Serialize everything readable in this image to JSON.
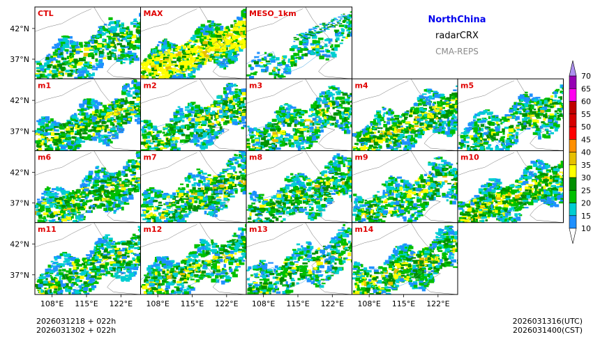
{
  "header": {
    "region": "NorthChina",
    "variable": "radarCRX",
    "model": "CMA-REPS"
  },
  "footer": {
    "init_utc": "2026031218  +  022h",
    "init_cst": "2026031302  +  022h",
    "valid_utc": "2026031316(UTC)",
    "valid_cst": "2026031400(CST)"
  },
  "chart_data": {
    "type": "heatmap",
    "title": "radarCRX",
    "subtitle": "NorthChina CMA-REPS",
    "panels": [
      {
        "label": "CTL",
        "row": 0,
        "col": 0,
        "intensity": 0.55
      },
      {
        "label": "MAX",
        "row": 0,
        "col": 1,
        "intensity": 1.0
      },
      {
        "label": "MESO_1km",
        "row": 0,
        "col": 2,
        "intensity": 0.18
      },
      {
        "label": "m1",
        "row": 1,
        "col": 0,
        "intensity": 0.75
      },
      {
        "label": "m2",
        "row": 1,
        "col": 1,
        "intensity": 0.65
      },
      {
        "label": "m3",
        "row": 1,
        "col": 2,
        "intensity": 0.6
      },
      {
        "label": "m4",
        "row": 1,
        "col": 3,
        "intensity": 0.7
      },
      {
        "label": "m5",
        "row": 1,
        "col": 4,
        "intensity": 0.55
      },
      {
        "label": "m6",
        "row": 2,
        "col": 0,
        "intensity": 0.65
      },
      {
        "label": "m7",
        "row": 2,
        "col": 1,
        "intensity": 0.65
      },
      {
        "label": "m8",
        "row": 2,
        "col": 2,
        "intensity": 0.6
      },
      {
        "label": "m9",
        "row": 2,
        "col": 3,
        "intensity": 0.6
      },
      {
        "label": "m10",
        "row": 2,
        "col": 4,
        "intensity": 0.8
      },
      {
        "label": "m11",
        "row": 3,
        "col": 0,
        "intensity": 0.6
      },
      {
        "label": "m12",
        "row": 3,
        "col": 1,
        "intensity": 0.6
      },
      {
        "label": "m13",
        "row": 3,
        "col": 2,
        "intensity": 0.5
      },
      {
        "label": "m14",
        "row": 3,
        "col": 3,
        "intensity": 0.7
      }
    ],
    "y_ticks": [
      {
        "value": 42,
        "label": "42°N"
      },
      {
        "value": 37,
        "label": "37°N"
      }
    ],
    "x_ticks": [
      {
        "value": 108,
        "label": "108°E"
      },
      {
        "value": 115,
        "label": "115°E"
      },
      {
        "value": 122,
        "label": "122°E"
      }
    ],
    "xlim": [
      104.5,
      126
    ],
    "ylim": [
      33.8,
      45.5
    ],
    "colorbar": {
      "levels": [
        10,
        15,
        20,
        25,
        30,
        35,
        40,
        45,
        50,
        55,
        60,
        65,
        70
      ],
      "labels": [
        "10",
        "15",
        "20",
        "25",
        "30",
        "35",
        "40",
        "45",
        "50",
        "55",
        "60",
        "65",
        "70"
      ],
      "colors": [
        "#1e90ff",
        "#00ced1",
        "#00c000",
        "#009000",
        "#ffff00",
        "#e7c000",
        "#ff9000",
        "#ff0000",
        "#d60000",
        "#c00000",
        "#ff00f0",
        "#9600b4",
        "#ad90f0"
      ],
      "extend": "both",
      "under_color": "#ffffff",
      "over_color": "#ad90f0"
    }
  }
}
